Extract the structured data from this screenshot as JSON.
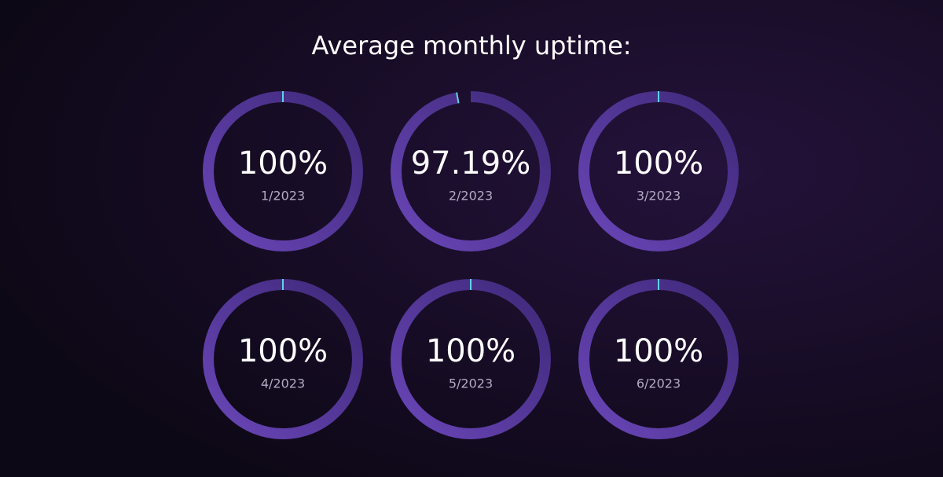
{
  "chart_data": {
    "type": "donut",
    "title": "Average monthly uptime:",
    "categories": [
      "1/2023",
      "2/2023",
      "3/2023",
      "4/2023",
      "5/2023",
      "6/2023"
    ],
    "values": [
      100,
      97.19,
      100,
      100,
      100,
      100
    ],
    "value_labels": [
      "100%",
      "97.19%",
      "100%",
      "100%",
      "100%",
      "100%"
    ],
    "ylim": [
      0,
      100
    ],
    "color": "#5b3aa3",
    "marker_color": "#5fd3e6"
  }
}
